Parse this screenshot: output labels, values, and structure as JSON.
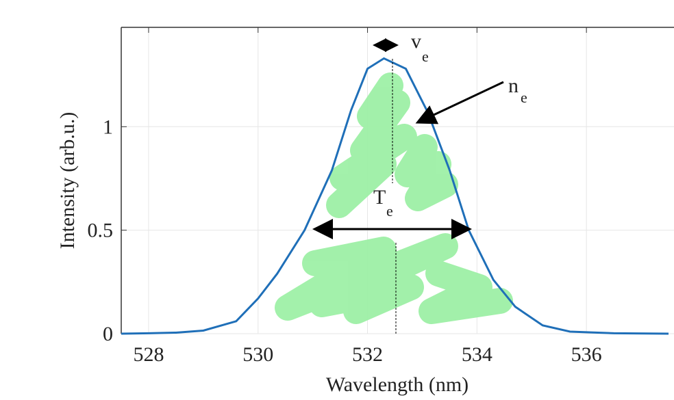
{
  "chart_data": {
    "type": "line",
    "x_label": "Wavelength (nm)",
    "y_label": "Intensity (arb.u.)",
    "x": [
      527.5,
      528,
      528.5,
      529,
      529.6,
      530,
      530.35,
      530.85,
      531.35,
      531.7,
      532.0,
      532.3,
      532.7,
      533.1,
      533.5,
      533.85,
      534.3,
      534.7,
      535.2,
      535.7,
      536.5,
      537.5
    ],
    "series": [
      {
        "color": "#1f6fb8",
        "values": [
          0,
          0.002,
          0.005,
          0.015,
          0.06,
          0.17,
          0.29,
          0.5,
          0.79,
          1.08,
          1.28,
          1.33,
          1.28,
          1.07,
          0.79,
          0.5,
          0.26,
          0.13,
          0.04,
          0.01,
          0.002,
          0
        ]
      }
    ],
    "xlim": [
      527.5,
      537.6
    ],
    "ylim": [
      0,
      1.48
    ],
    "xticks": [
      528,
      530,
      532,
      534,
      536
    ],
    "yticks": [
      0,
      0.5,
      1
    ],
    "grid": true,
    "annotations": [
      {
        "text": "v",
        "sub": "e"
      },
      {
        "text": "n",
        "sub": "e"
      },
      {
        "text": "T",
        "sub": "e"
      }
    ]
  }
}
